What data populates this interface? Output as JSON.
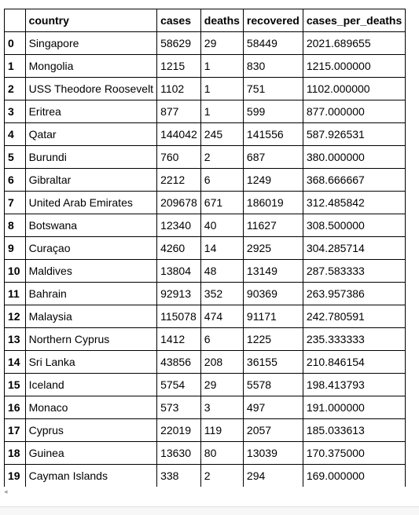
{
  "table": {
    "columns": [
      "country",
      "cases",
      "deaths",
      "recovered",
      "cases_per_deaths"
    ],
    "rows": [
      {
        "index": "0",
        "country": "Singapore",
        "cases": "58629",
        "deaths": "29",
        "recovered": "58449",
        "cases_per_deaths": "2021.689655"
      },
      {
        "index": "1",
        "country": "Mongolia",
        "cases": "1215",
        "deaths": "1",
        "recovered": "830",
        "cases_per_deaths": "1215.000000"
      },
      {
        "index": "2",
        "country": "USS Theodore Roosevelt",
        "cases": "1102",
        "deaths": "1",
        "recovered": "751",
        "cases_per_deaths": "1102.000000"
      },
      {
        "index": "3",
        "country": "Eritrea",
        "cases": "877",
        "deaths": "1",
        "recovered": "599",
        "cases_per_deaths": "877.000000"
      },
      {
        "index": "4",
        "country": "Qatar",
        "cases": "144042",
        "deaths": "245",
        "recovered": "141556",
        "cases_per_deaths": "587.926531"
      },
      {
        "index": "5",
        "country": "Burundi",
        "cases": "760",
        "deaths": "2",
        "recovered": "687",
        "cases_per_deaths": "380.000000"
      },
      {
        "index": "6",
        "country": "Gibraltar",
        "cases": "2212",
        "deaths": "6",
        "recovered": "1249",
        "cases_per_deaths": "368.666667"
      },
      {
        "index": "7",
        "country": "United Arab Emirates",
        "cases": "209678",
        "deaths": "671",
        "recovered": "186019",
        "cases_per_deaths": "312.485842"
      },
      {
        "index": "8",
        "country": "Botswana",
        "cases": "12340",
        "deaths": "40",
        "recovered": "11627",
        "cases_per_deaths": "308.500000"
      },
      {
        "index": "9",
        "country": "Curaçao",
        "cases": "4260",
        "deaths": "14",
        "recovered": "2925",
        "cases_per_deaths": "304.285714"
      },
      {
        "index": "10",
        "country": "Maldives",
        "cases": "13804",
        "deaths": "48",
        "recovered": "13149",
        "cases_per_deaths": "287.583333"
      },
      {
        "index": "11",
        "country": "Bahrain",
        "cases": "92913",
        "deaths": "352",
        "recovered": "90369",
        "cases_per_deaths": "263.957386"
      },
      {
        "index": "12",
        "country": "Malaysia",
        "cases": "115078",
        "deaths": "474",
        "recovered": "91171",
        "cases_per_deaths": "242.780591"
      },
      {
        "index": "13",
        "country": "Northern Cyprus",
        "cases": "1412",
        "deaths": "6",
        "recovered": "1225",
        "cases_per_deaths": "235.333333"
      },
      {
        "index": "14",
        "country": "Sri Lanka",
        "cases": "43856",
        "deaths": "208",
        "recovered": "36155",
        "cases_per_deaths": "210.846154"
      },
      {
        "index": "15",
        "country": "Iceland",
        "cases": "5754",
        "deaths": "29",
        "recovered": "5578",
        "cases_per_deaths": "198.413793"
      },
      {
        "index": "16",
        "country": "Monaco",
        "cases": "573",
        "deaths": "3",
        "recovered": "497",
        "cases_per_deaths": "191.000000"
      },
      {
        "index": "17",
        "country": "Cyprus",
        "cases": "22019",
        "deaths": "119",
        "recovered": "2057",
        "cases_per_deaths": "185.033613"
      },
      {
        "index": "18",
        "country": "Guinea",
        "cases": "13630",
        "deaths": "80",
        "recovered": "13039",
        "cases_per_deaths": "170.375000"
      },
      {
        "index": "19",
        "country": "Cayman Islands",
        "cases": "338",
        "deaths": "2",
        "recovered": "294",
        "cases_per_deaths": "169.000000"
      }
    ]
  },
  "scrollbar": {
    "left_arrow": "◂"
  }
}
